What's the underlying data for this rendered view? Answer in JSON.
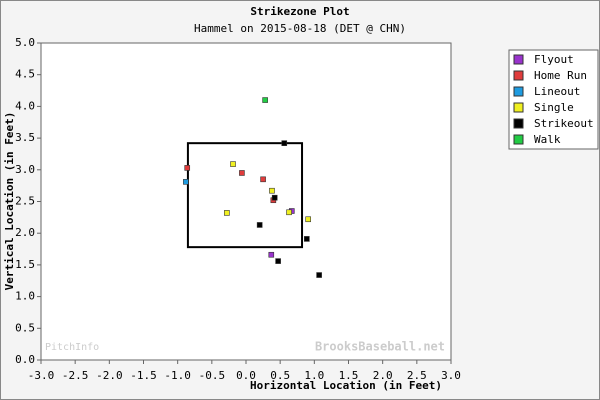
{
  "chart_data": {
    "type": "scatter",
    "title": "Strikezone Plot",
    "subtitle": "Hammel on 2015-08-18 (DET @ CHN)",
    "x_label": "Horizontal Location (in Feet)",
    "y_label": "Vertical Location (in Feet)",
    "watermarks": [
      "PitchInfo",
      "BrooksBaseball.net"
    ],
    "xlim": [
      -3,
      3
    ],
    "ylim": [
      0,
      5
    ],
    "xticks": [
      {
        "value": -3,
        "label": "-3.0"
      },
      {
        "value": -2.5,
        "label": "-2.5"
      },
      {
        "value": -2,
        "label": "-2.0"
      },
      {
        "value": -1.5,
        "label": "-1.5"
      },
      {
        "value": -1,
        "label": "-1.0"
      },
      {
        "value": -0.5,
        "label": "-0.5"
      },
      {
        "value": 0,
        "label": "0.0"
      },
      {
        "value": 0.5,
        "label": "0.5"
      },
      {
        "value": 1,
        "label": "1.0"
      },
      {
        "value": 1.5,
        "label": "1.5"
      },
      {
        "value": 2,
        "label": "2.0"
      },
      {
        "value": 2.5,
        "label": "2.5"
      },
      {
        "value": 3,
        "label": "3.0"
      }
    ],
    "yticks": [
      {
        "value": 0,
        "label": "0.0"
      },
      {
        "value": 0.5,
        "label": "0.5"
      },
      {
        "value": 1,
        "label": "1.0"
      },
      {
        "value": 1.5,
        "label": "1.5"
      },
      {
        "value": 2,
        "label": "2.0"
      },
      {
        "value": 2.5,
        "label": "2.5"
      },
      {
        "value": 3,
        "label": "3.0"
      },
      {
        "value": 3.5,
        "label": "3.5"
      },
      {
        "value": 4,
        "label": "4.0"
      },
      {
        "value": 4.5,
        "label": "4.5"
      },
      {
        "value": 5,
        "label": "5.0"
      }
    ],
    "grid": false,
    "legend": "right",
    "strike_zone": {
      "x": [
        -0.85,
        0.82
      ],
      "y": [
        1.78,
        3.42
      ]
    },
    "series": [
      {
        "name": "Flyout",
        "color": "#9933cc",
        "x": [
          0.37,
          0.67
        ],
        "y": [
          1.66,
          2.35
        ]
      },
      {
        "name": "Home Run",
        "color": "#e03c3c",
        "x": [
          -0.06,
          0.25,
          0.4,
          -0.86
        ],
        "y": [
          2.95,
          2.85,
          2.52,
          3.03
        ]
      },
      {
        "name": "Lineout",
        "color": "#1e9be0",
        "x": [
          -0.88
        ],
        "y": [
          2.81
        ]
      },
      {
        "name": "Single",
        "color": "#f0f020",
        "x": [
          -0.19,
          0.38,
          -0.28,
          0.63,
          0.91
        ],
        "y": [
          3.09,
          2.67,
          2.32,
          2.33,
          2.22
        ]
      },
      {
        "name": "Strikeout",
        "color": "#000000",
        "x": [
          0.56,
          0.2,
          0.89,
          0.47,
          1.07,
          0.42
        ],
        "y": [
          3.42,
          2.13,
          1.91,
          1.56,
          1.34,
          2.56
        ]
      },
      {
        "name": "Walk",
        "color": "#22cc44",
        "x": [
          0.28
        ],
        "y": [
          4.1
        ]
      }
    ]
  }
}
